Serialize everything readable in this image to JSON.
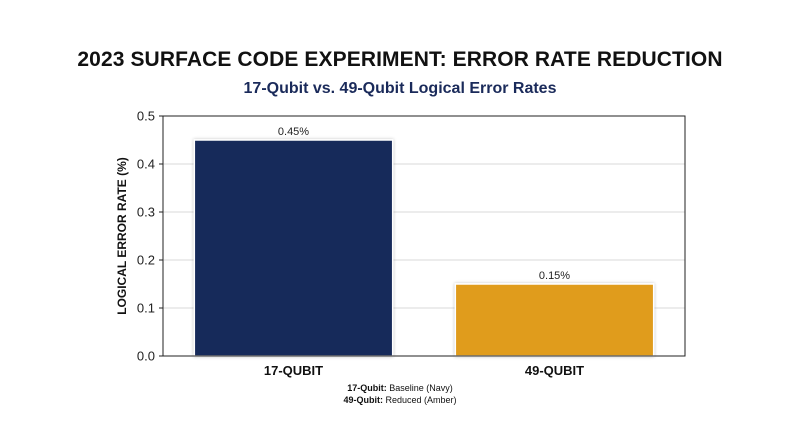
{
  "chart_data": {
    "type": "bar",
    "title": "2023 SURFACE CODE EXPERIMENT: ERROR RATE REDUCTION",
    "subtitle": "17-Qubit vs. 49-Qubit Logical Error Rates",
    "xlabel": "",
    "ylabel": "LOGICAL ERROR RATE (%)",
    "categories": [
      "17-QUBIT",
      "49-QUBIT"
    ],
    "values": [
      0.45,
      0.15
    ],
    "data_labels": [
      "0.45%",
      "0.15%"
    ],
    "bar_colors": [
      "#15295a",
      "#e09c1e"
    ],
    "ylim": [
      0,
      0.5
    ],
    "yticks": [
      0.0,
      0.1,
      0.2,
      0.3,
      0.4,
      0.5
    ],
    "ytick_labels": [
      "0.0",
      "0.1",
      "0.2",
      "0.3",
      "0.4",
      "0.5"
    ],
    "grid": true,
    "footnotes": [
      {
        "key": "17-Qubit:",
        "text": " Baseline (Navy)"
      },
      {
        "key": "49-Qubit:",
        "text": " Reduced (Amber)"
      }
    ]
  }
}
